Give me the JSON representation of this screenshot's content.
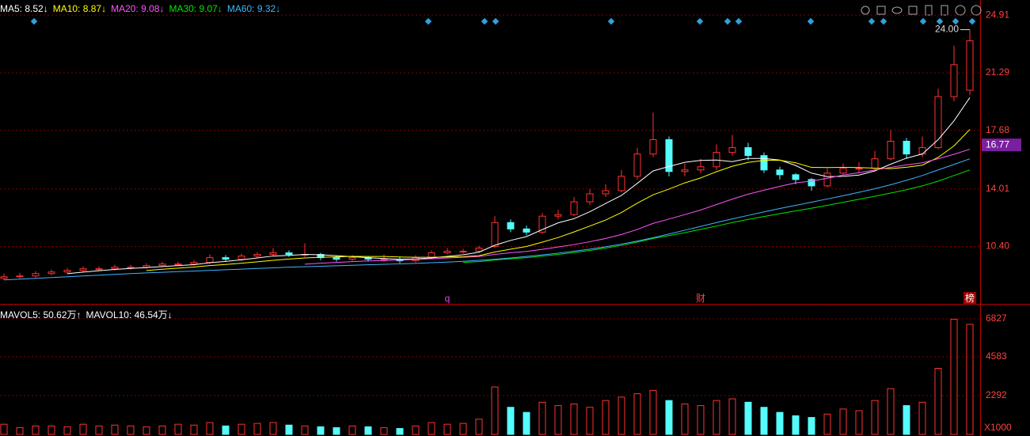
{
  "chart_data": {
    "type": "candlestick",
    "series": [
      {
        "label": "MA5: 8.52↓",
        "color": "#ffffff",
        "values": [
          null,
          null,
          null,
          null,
          8.69,
          8.79,
          8.88,
          8.96,
          9.02,
          9.08,
          9.14,
          9.2,
          9.26,
          9.38,
          9.46,
          9.56,
          9.68,
          9.8,
          9.84,
          9.9,
          9.88,
          9.82,
          9.76,
          9.7,
          9.64,
          9.6,
          9.62,
          9.68,
          9.78,
          9.88,
          10.04,
          10.48,
          10.78,
          11.02,
          11.46,
          11.88,
          12.14,
          12.58,
          13.1,
          13.6,
          14.36,
          15.14,
          15.42,
          15.68,
          15.8,
          15.82,
          15.72,
          15.92,
          15.92,
          15.82,
          15.48,
          15.0,
          14.78,
          14.8,
          14.88,
          15.14,
          15.56,
          15.94,
          16.2,
          17.1,
          18.28,
          19.74
        ]
      },
      {
        "label": "MA10: 8.87↓",
        "color": "#ffff00",
        "values": [
          null,
          null,
          null,
          null,
          null,
          null,
          null,
          null,
          null,
          8.89,
          8.97,
          9.04,
          9.11,
          9.2,
          9.27,
          9.35,
          9.44,
          9.53,
          9.61,
          9.68,
          9.72,
          9.75,
          9.78,
          9.77,
          9.77,
          9.74,
          9.72,
          9.72,
          9.74,
          9.76,
          9.82,
          10.05,
          10.23,
          10.4,
          10.67,
          10.96,
          11.31,
          11.68,
          12.06,
          12.53,
          13.12,
          13.64,
          14.0,
          14.39,
          14.7,
          15.09,
          15.43,
          15.67,
          15.8,
          15.81,
          15.65,
          15.36,
          15.35,
          15.36,
          15.35,
          15.31,
          15.28,
          15.37,
          15.5,
          15.99,
          16.71,
          17.74
        ]
      },
      {
        "label": "MA20: 9.08↓",
        "color": "#ff55ff",
        "values": [
          null,
          null,
          null,
          null,
          null,
          null,
          null,
          null,
          null,
          null,
          null,
          null,
          null,
          null,
          null,
          null,
          null,
          null,
          null,
          9.29,
          9.35,
          9.4,
          9.45,
          9.49,
          9.52,
          9.55,
          9.58,
          9.63,
          9.68,
          9.72,
          9.77,
          9.9,
          10.01,
          10.09,
          10.22,
          10.37,
          10.52,
          10.7,
          10.9,
          11.15,
          11.47,
          11.85,
          12.12,
          12.4,
          12.69,
          13.03,
          13.37,
          13.68,
          13.93,
          14.17,
          14.39,
          14.5,
          14.68,
          14.88,
          15.03,
          15.2,
          15.36,
          15.52,
          15.65,
          15.9,
          16.18,
          16.5
        ]
      },
      {
        "label": "MA30: 9.07↓",
        "color": "#00e600",
        "values": [
          null,
          null,
          null,
          null,
          null,
          null,
          null,
          null,
          null,
          null,
          null,
          null,
          null,
          null,
          null,
          null,
          null,
          null,
          null,
          null,
          null,
          null,
          null,
          null,
          null,
          null,
          null,
          null,
          null,
          9.4,
          9.45,
          9.55,
          9.63,
          9.7,
          9.8,
          9.9,
          10.02,
          10.15,
          10.3,
          10.47,
          10.68,
          10.9,
          11.08,
          11.27,
          11.47,
          11.68,
          11.9,
          12.1,
          12.28,
          12.46,
          12.63,
          12.8,
          12.98,
          13.17,
          13.36,
          13.55,
          13.75,
          13.96,
          14.2,
          14.5,
          14.85,
          15.2
        ]
      },
      {
        "label": "MA60: 9.32↓",
        "color": "#3fb5ff",
        "values": [
          8.3,
          8.35,
          8.4,
          8.45,
          8.5,
          8.55,
          8.6,
          8.65,
          8.7,
          8.74,
          8.78,
          8.82,
          8.86,
          8.9,
          8.94,
          8.98,
          9.02,
          9.06,
          9.1,
          9.13,
          9.16,
          9.19,
          9.22,
          9.25,
          9.28,
          9.31,
          9.34,
          9.38,
          9.42,
          9.47,
          9.53,
          9.6,
          9.68,
          9.77,
          9.87,
          9.98,
          10.1,
          10.23,
          10.38,
          10.55,
          10.74,
          10.95,
          11.18,
          11.42,
          11.66,
          11.9,
          12.13,
          12.35,
          12.57,
          12.78,
          12.98,
          13.18,
          13.38,
          13.58,
          13.8,
          14.02,
          14.27,
          14.55,
          14.85,
          15.2,
          15.55,
          15.9
        ]
      }
    ],
    "open": [
      8.4,
      8.5,
      8.55,
      8.7,
      8.8,
      8.9,
      9.0,
      9.0,
      9.1,
      9.1,
      9.2,
      9.3,
      9.3,
      9.4,
      9.7,
      9.6,
      9.8,
      9.9,
      10.0,
      9.9,
      9.9,
      9.7,
      9.6,
      9.7,
      9.6,
      9.6,
      9.5,
      9.7,
      10.0,
      10.1,
      10.1,
      10.4,
      11.9,
      11.5,
      11.3,
      12.3,
      12.4,
      13.2,
      13.7,
      13.9,
      14.8,
      16.2,
      17.1,
      15.1,
      15.2,
      15.4,
      16.3,
      16.6,
      16.1,
      15.2,
      14.9,
      14.6,
      14.2,
      15.0,
      15.3,
      15.3,
      15.9,
      17.0,
      16.2,
      16.6,
      19.8,
      20.2
    ],
    "close": [
      8.5,
      8.55,
      8.7,
      8.8,
      8.9,
      9.0,
      9.0,
      9.1,
      9.1,
      9.2,
      9.3,
      9.3,
      9.4,
      9.7,
      9.6,
      9.8,
      9.9,
      10.0,
      9.9,
      9.9,
      9.7,
      9.6,
      9.7,
      9.6,
      9.6,
      9.5,
      9.7,
      10.0,
      10.1,
      10.1,
      10.3,
      11.9,
      11.5,
      11.3,
      12.3,
      12.4,
      13.2,
      13.7,
      13.9,
      14.8,
      16.2,
      17.1,
      15.1,
      15.2,
      15.4,
      16.3,
      16.6,
      16.1,
      15.2,
      14.9,
      14.6,
      14.2,
      15.0,
      15.3,
      15.3,
      15.9,
      17.0,
      16.2,
      16.6,
      19.8,
      21.8,
      23.3
    ],
    "high": [
      8.7,
      8.75,
      8.85,
      8.95,
      9.05,
      9.15,
      9.15,
      9.25,
      9.25,
      9.35,
      9.45,
      9.45,
      9.55,
      9.9,
      9.85,
      9.95,
      10.05,
      10.3,
      10.15,
      10.6,
      10.0,
      9.8,
      9.85,
      9.8,
      9.9,
      9.75,
      9.85,
      10.15,
      10.3,
      10.25,
      10.45,
      12.3,
      12.1,
      11.7,
      12.5,
      12.7,
      13.5,
      14.0,
      14.3,
      15.2,
      16.6,
      18.8,
      17.3,
      15.6,
      15.9,
      16.8,
      17.4,
      16.9,
      16.3,
      15.4,
      15.0,
      14.7,
      15.3,
      15.6,
      15.7,
      16.4,
      17.7,
      17.2,
      17.3,
      20.3,
      23.0,
      24.0
    ],
    "low": [
      8.3,
      8.4,
      8.45,
      8.6,
      8.7,
      8.8,
      8.85,
      8.9,
      8.95,
      9.0,
      9.1,
      9.15,
      9.2,
      9.3,
      9.45,
      9.5,
      9.7,
      9.8,
      9.75,
      9.75,
      9.55,
      9.45,
      9.5,
      9.45,
      9.45,
      9.35,
      9.4,
      9.6,
      9.9,
      9.95,
      10.0,
      10.3,
      11.3,
      11.1,
      11.2,
      12.1,
      12.3,
      13.0,
      13.5,
      13.8,
      14.6,
      16.0,
      14.8,
      14.8,
      15.0,
      15.2,
      16.1,
      15.8,
      15.0,
      14.6,
      14.3,
      13.9,
      14.1,
      14.9,
      15.0,
      15.2,
      15.8,
      15.9,
      16.0,
      16.5,
      19.5,
      19.9
    ],
    "ylim": [
      6.85,
      25.86
    ],
    "yticks": [
      24.91,
      21.29,
      17.68,
      14.01,
      {
        "value": 10.4,
        "label": "10.40"
      }
    ],
    "grid": true,
    "current_price": {
      "value": 16.77,
      "label": "16.77"
    },
    "high_label": {
      "value": 24.0,
      "label": "24.00"
    },
    "event_labels": [
      "q",
      "财",
      "榜"
    ],
    "volume": {
      "legend": [
        {
          "label": "MAVOL5: 50.62万↑",
          "color": "#ffffff"
        },
        {
          "label": "MAVOL10: 46.54万↓",
          "color": "#ffffff"
        }
      ],
      "values": [
        600,
        400,
        500,
        500,
        450,
        600,
        500,
        550,
        500,
        450,
        500,
        600,
        550,
        700,
        500,
        600,
        650,
        700,
        550,
        500,
        450,
        400,
        500,
        450,
        400,
        350,
        500,
        700,
        600,
        650,
        900,
        2800,
        1600,
        1300,
        1900,
        1700,
        1800,
        1600,
        2000,
        2200,
        2400,
        2600,
        2000,
        1800,
        1700,
        2000,
        2100,
        1900,
        1600,
        1300,
        1100,
        1000,
        1200,
        1500,
        1400,
        2000,
        2700,
        1700,
        1900,
        3900,
        6800,
        6500
      ],
      "ylim": [
        0,
        7660
      ],
      "yticks": [
        6827,
        4583,
        2292
      ],
      "unit_label": "X1000"
    }
  }
}
